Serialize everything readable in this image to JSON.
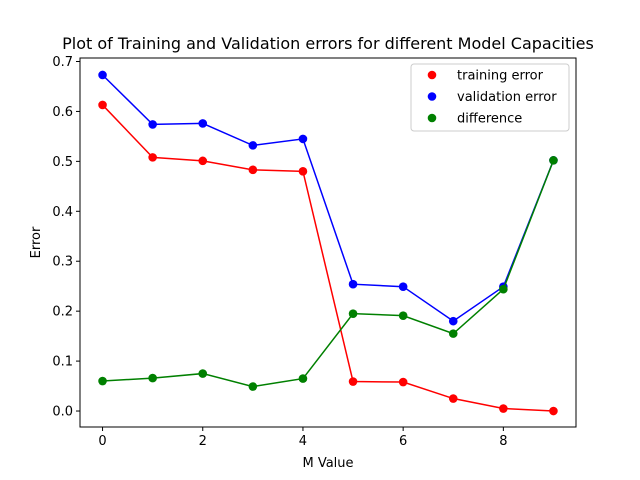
{
  "chart_data": {
    "type": "line",
    "title": "Plot of Training and Validation errors for different Model Capacities",
    "xlabel": "M Value",
    "ylabel": "Error",
    "xlim": [
      -0.45,
      9.45
    ],
    "ylim": [
      -0.032,
      0.707
    ],
    "xticks": [
      0,
      2,
      4,
      6,
      8
    ],
    "yticks": [
      0.0,
      0.1,
      0.2,
      0.3,
      0.4,
      0.5,
      0.6,
      0.7
    ],
    "ytick_labels": [
      "0.0",
      "0.1",
      "0.2",
      "0.3",
      "0.4",
      "0.5",
      "0.6",
      "0.7"
    ],
    "xtick_labels": [
      "0",
      "2",
      "4",
      "6",
      "8"
    ],
    "x": [
      0,
      1,
      2,
      3,
      4,
      5,
      6,
      7,
      8,
      9
    ],
    "series": [
      {
        "name": "training error",
        "color": "#ff0000",
        "values": [
          0.613,
          0.508,
          0.501,
          0.483,
          0.48,
          0.059,
          0.058,
          0.025,
          0.005,
          0.0
        ]
      },
      {
        "name": "validation error",
        "color": "#0000ff",
        "values": [
          0.673,
          0.574,
          0.576,
          0.532,
          0.545,
          0.254,
          0.249,
          0.18,
          0.249,
          0.502
        ]
      },
      {
        "name": "difference",
        "color": "#008000",
        "values": [
          0.06,
          0.066,
          0.075,
          0.049,
          0.065,
          0.195,
          0.191,
          0.155,
          0.244,
          0.502
        ]
      }
    ],
    "legend": "top-right",
    "grid": false
  }
}
